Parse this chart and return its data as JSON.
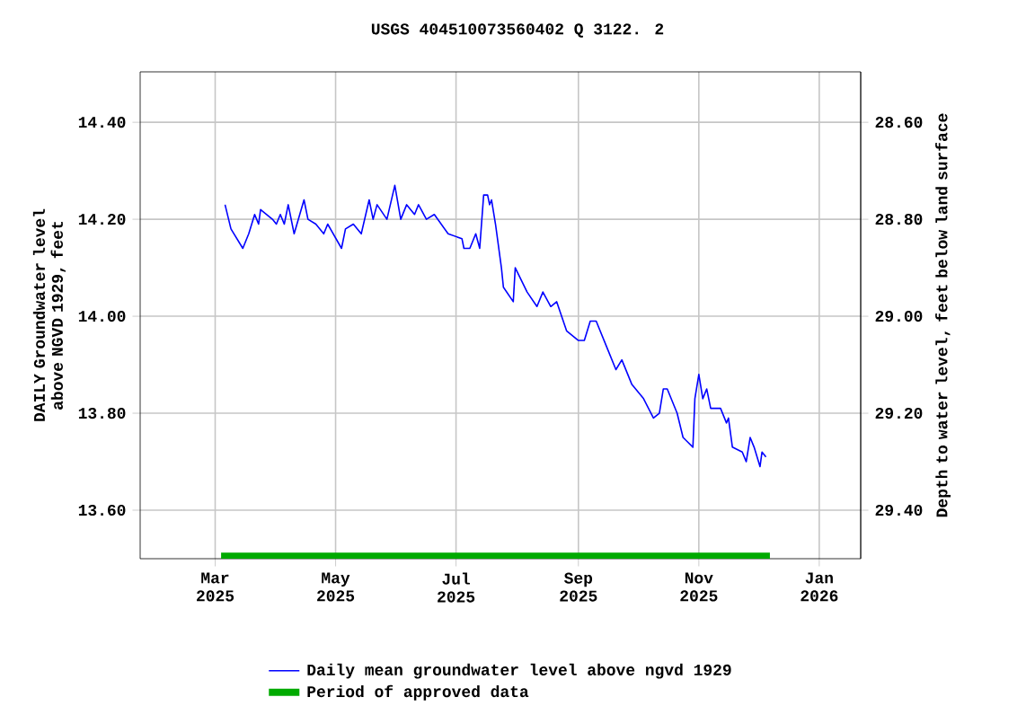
{
  "chart_data": {
    "type": "line",
    "title": "USGS 404510073560402 Q 3122. 2",
    "ylabel": "DAILY Groundwater level above NGVD 1929, feet",
    "y2label": "Depth to water level, feet below land surface",
    "x": [
      "2025-03-06",
      "2025-03-09",
      "2025-03-15",
      "2025-03-18",
      "2025-03-21",
      "2025-03-23",
      "2025-03-24",
      "2025-03-30",
      "2025-04-01",
      "2025-04-03",
      "2025-04-05",
      "2025-04-07",
      "2025-04-10",
      "2025-04-15",
      "2025-04-17",
      "2025-04-21",
      "2025-04-25",
      "2025-04-27",
      "2025-05-04",
      "2025-05-06",
      "2025-05-10",
      "2025-05-14",
      "2025-05-18",
      "2025-05-20",
      "2025-05-22",
      "2025-05-27",
      "2025-05-31",
      "2025-06-03",
      "2025-06-06",
      "2025-06-10",
      "2025-06-12",
      "2025-06-16",
      "2025-06-20",
      "2025-06-27",
      "2025-07-04",
      "2025-07-05",
      "2025-07-08",
      "2025-07-11",
      "2025-07-13",
      "2025-07-15",
      "2025-07-17",
      "2025-07-18",
      "2025-07-19",
      "2025-07-21",
      "2025-07-24",
      "2025-07-25",
      "2025-07-30",
      "2025-07-31",
      "2025-08-06",
      "2025-08-11",
      "2025-08-14",
      "2025-08-18",
      "2025-08-21",
      "2025-08-26",
      "2025-09-01",
      "2025-09-04",
      "2025-09-07",
      "2025-09-10",
      "2025-09-16",
      "2025-09-20",
      "2025-09-23",
      "2025-09-28",
      "2025-10-04",
      "2025-10-09",
      "2025-10-12",
      "2025-10-14",
      "2025-10-16",
      "2025-10-21",
      "2025-10-24",
      "2025-10-29",
      "2025-10-30",
      "2025-11-01",
      "2025-11-03",
      "2025-11-05",
      "2025-11-07",
      "2025-11-12",
      "2025-11-15",
      "2025-11-16",
      "2025-11-18",
      "2025-11-23",
      "2025-11-25",
      "2025-11-27",
      "2025-11-29",
      "2025-12-02",
      "2025-12-03",
      "2025-12-05"
    ],
    "series": [
      {
        "name": "Daily mean groundwater level above ngvd 1929",
        "color": "#0000ff",
        "values": [
          14.23,
          14.18,
          14.14,
          14.17,
          14.21,
          14.19,
          14.22,
          14.2,
          14.19,
          14.21,
          14.19,
          14.23,
          14.17,
          14.24,
          14.2,
          14.19,
          14.17,
          14.19,
          14.14,
          14.18,
          14.19,
          14.17,
          14.24,
          14.2,
          14.23,
          14.2,
          14.27,
          14.2,
          14.23,
          14.21,
          14.23,
          14.2,
          14.21,
          14.17,
          14.16,
          14.14,
          14.14,
          14.17,
          14.14,
          14.25,
          14.25,
          14.23,
          14.24,
          14.19,
          14.1,
          14.06,
          14.03,
          14.1,
          14.05,
          14.02,
          14.05,
          14.02,
          14.03,
          13.97,
          13.95,
          13.95,
          13.99,
          13.99,
          13.93,
          13.89,
          13.91,
          13.86,
          13.83,
          13.79,
          13.8,
          13.85,
          13.85,
          13.8,
          13.75,
          13.73,
          13.83,
          13.88,
          13.83,
          13.85,
          13.81,
          13.81,
          13.78,
          13.79,
          13.73,
          13.72,
          13.7,
          13.75,
          13.73,
          13.69,
          13.72,
          13.71
        ]
      },
      {
        "name": "Period of approved data",
        "color": "#00aa00",
        "x": [
          "2025-03-04",
          "2025-12-07"
        ],
        "values": [
          13.505,
          13.505
        ]
      }
    ],
    "xlim": [
      "2025-01-22",
      "2026-01-22"
    ],
    "xticks": [
      {
        "value": "2025-03-01",
        "label": "Mar 2025"
      },
      {
        "value": "2025-05-01",
        "label": "May 2025"
      },
      {
        "value": "2025-07-01",
        "label": "Jul 2025"
      },
      {
        "value": "2025-09-01",
        "label": "Sep 2025"
      },
      {
        "value": "2025-11-01",
        "label": "Nov 2025"
      },
      {
        "value": "2026-01-01",
        "label": "Jan 2026"
      }
    ],
    "ylim": [
      13.5,
      14.504
    ],
    "yticks": [
      {
        "value": 13.6,
        "label": "13.60"
      },
      {
        "value": 13.8,
        "label": "13.80"
      },
      {
        "value": 14.0,
        "label": "14.00"
      },
      {
        "value": 14.2,
        "label": "14.20"
      },
      {
        "value": 14.4,
        "label": "14.40"
      }
    ],
    "y2lim": [
      29.5,
      28.496
    ],
    "y2ticks": [
      {
        "value": 28.6,
        "label": "28.60"
      },
      {
        "value": 28.8,
        "label": "28.80"
      },
      {
        "value": 29.0,
        "label": "29.00"
      },
      {
        "value": 29.2,
        "label": "29.20"
      },
      {
        "value": 29.4,
        "label": "29.40"
      }
    ],
    "grid": true,
    "legend": "bottom",
    "line_style": "solid"
  }
}
